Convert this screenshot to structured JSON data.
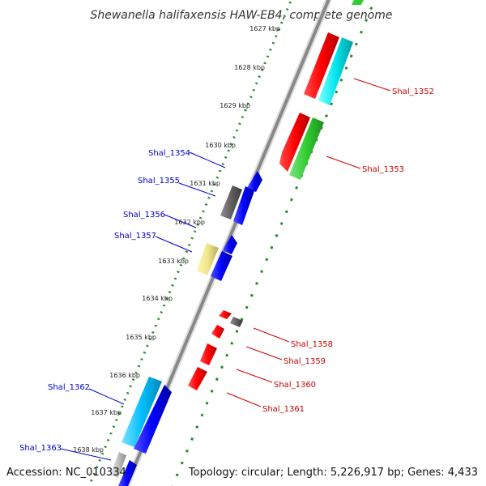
{
  "header": {
    "title": "Shewanella halifaxensis HAW-EB4, complete genome"
  },
  "footer": {
    "accession": "Accession: NC_010334",
    "summary": "Topology: circular; Length: 5,226,917 bp; Genes: 4,433"
  },
  "colors": {
    "backbone": "#888888",
    "tick_ring": "#228b22",
    "label_left": "#0000cc",
    "label_right": "#cc0000"
  },
  "scale_ticks": [
    "1627 kbp",
    "1628 kbp",
    "1629 kbp",
    "1630 kbp",
    "1631 kbp",
    "1632 kbp",
    "1633 kbp",
    "1634 kbp",
    "1635 kbp",
    "1636 kbp",
    "1637 kbp",
    "1638 kbp"
  ],
  "genes": {
    "forward": [
      {
        "label": "Shal_1352",
        "color": "#ff0000"
      },
      {
        "label": "Shal_1352",
        "color": "#00e5ee"
      },
      {
        "label": "Shal_1353",
        "color": "#ff0000"
      },
      {
        "label": "Shal_1353",
        "color": "#32cd32"
      },
      {
        "label": "Shal_1358",
        "color": "#808080"
      }
    ],
    "reverse": [
      {
        "label": "Shal_1354",
        "color": "#0000ff"
      },
      {
        "label": "Shal_1355",
        "color": "#606060"
      },
      {
        "label": "Shal_1355",
        "color": "#0000ff"
      },
      {
        "label": "Shal_1357",
        "color": "#0000ff"
      },
      {
        "label": "Shal_1357",
        "color": "#f0e68c"
      },
      {
        "label": "Shal_1357",
        "color": "#0000ff"
      },
      {
        "label": "Shal_1358",
        "color": "#ff0000"
      },
      {
        "label": "Shal_1359",
        "color": "#ff0000"
      },
      {
        "label": "Shal_1360",
        "color": "#ff0000"
      },
      {
        "label": "Shal_1361",
        "color": "#ff0000"
      },
      {
        "label": "Shal_1362",
        "color": "#00bfff"
      },
      {
        "label": "Shal_1362",
        "color": "#0000ff"
      },
      {
        "label": "Shal_1363",
        "color": "#c0c0c0"
      },
      {
        "label": "Shal_1363",
        "color": "#0000ff"
      }
    ]
  },
  "labels_left": [
    "Shal_1354",
    "Shal_1355",
    "Shal_1356",
    "Shal_1357",
    "Shal_1362",
    "Shal_1363"
  ],
  "labels_right": [
    "Shal_1352",
    "Shal_1353",
    "Shal_1358",
    "Shal_1359",
    "Shal_1360",
    "Shal_1361"
  ]
}
